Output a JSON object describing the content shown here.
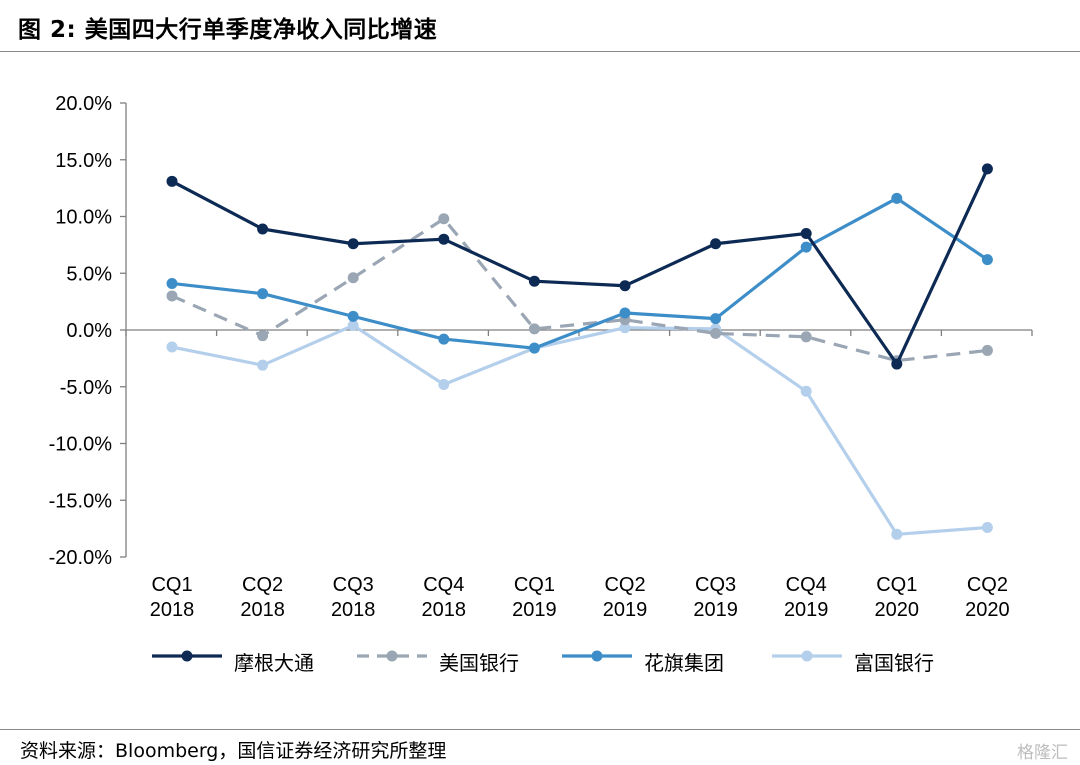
{
  "header": {
    "title": "图 2:  美国四大行单季度净收入同比增速"
  },
  "footer": {
    "source": "资料来源：Bloomberg，国信证券经济研究所整理",
    "watermark": "格隆汇"
  },
  "chart_data": {
    "type": "line",
    "title": "",
    "xlabel": "",
    "ylabel": "",
    "categories": [
      [
        "CQ1",
        "2018"
      ],
      [
        "CQ2",
        "2018"
      ],
      [
        "CQ3",
        "2018"
      ],
      [
        "CQ4",
        "2018"
      ],
      [
        "CQ1",
        "2019"
      ],
      [
        "CQ2",
        "2019"
      ],
      [
        "CQ3",
        "2019"
      ],
      [
        "CQ4",
        "2019"
      ],
      [
        "CQ1",
        "2020"
      ],
      [
        "CQ2",
        "2020"
      ]
    ],
    "ylim": [
      -20,
      20
    ],
    "yticks": [
      20,
      15,
      10,
      5,
      0,
      -5,
      -10,
      -15,
      -20
    ],
    "ytick_labels": [
      "20.0%",
      "15.0%",
      "10.0%",
      "5.0%",
      "0.0%",
      "-5.0%",
      "-10.0%",
      "-15.0%",
      "-20.0%"
    ],
    "grid": false,
    "legend_position": "bottom",
    "series": [
      {
        "name": "摩根大通",
        "color": "#0d2a54",
        "dash": false,
        "values": [
          13.1,
          8.9,
          7.6,
          8.0,
          4.3,
          3.9,
          7.6,
          8.5,
          -3.0,
          14.2
        ]
      },
      {
        "name": "美国银行",
        "color": "#9aa6b4",
        "dash": true,
        "values": [
          3.0,
          -0.5,
          4.6,
          9.8,
          0.1,
          0.9,
          -0.3,
          -0.6,
          -2.7,
          -1.8
        ]
      },
      {
        "name": "花旗集团",
        "color": "#3d8ec8",
        "dash": false,
        "values": [
          4.1,
          3.2,
          1.2,
          -0.8,
          -1.6,
          1.5,
          1.0,
          7.3,
          11.6,
          6.2
        ]
      },
      {
        "name": "富国银行",
        "color": "#b4cfeb",
        "dash": false,
        "values": [
          -1.5,
          -3.1,
          0.4,
          -4.8,
          -1.6,
          0.2,
          0.1,
          -5.4,
          -18.0,
          -17.4
        ]
      }
    ]
  }
}
